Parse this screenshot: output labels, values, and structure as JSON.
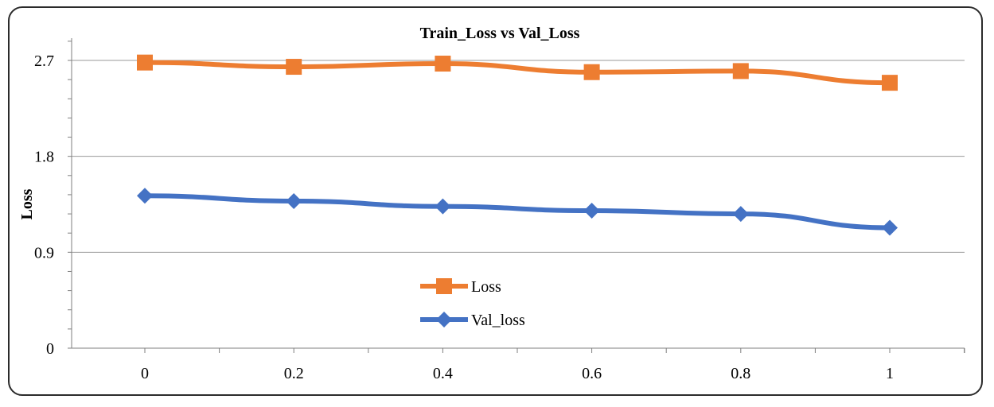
{
  "chart_data": {
    "type": "line",
    "title": "Train_Loss vs Val_Loss",
    "xlabel": "",
    "ylabel": "Loss",
    "x": [
      0,
      0.2,
      0.4,
      0.6,
      0.8,
      1
    ],
    "x_tick_labels": [
      "0",
      "0.2",
      "0.4",
      "0.6",
      "0.8",
      "1"
    ],
    "y_tick_labels": [
      "0",
      "0.9",
      "1.8",
      "2.7"
    ],
    "y_ticks": [
      0,
      0.9,
      1.8,
      2.7
    ],
    "ylim": [
      0,
      2.7
    ],
    "xlim": [
      -0.1,
      1.1
    ],
    "grid": true,
    "legend_position": "center-bottom",
    "series": [
      {
        "name": "Loss",
        "color": "#ED7D31",
        "marker": "square",
        "values": [
          2.68,
          2.64,
          2.67,
          2.59,
          2.6,
          2.49
        ]
      },
      {
        "name": "Val_loss",
        "color": "#4472C4",
        "marker": "diamond",
        "values": [
          1.43,
          1.38,
          1.33,
          1.29,
          1.26,
          1.13
        ]
      }
    ]
  }
}
